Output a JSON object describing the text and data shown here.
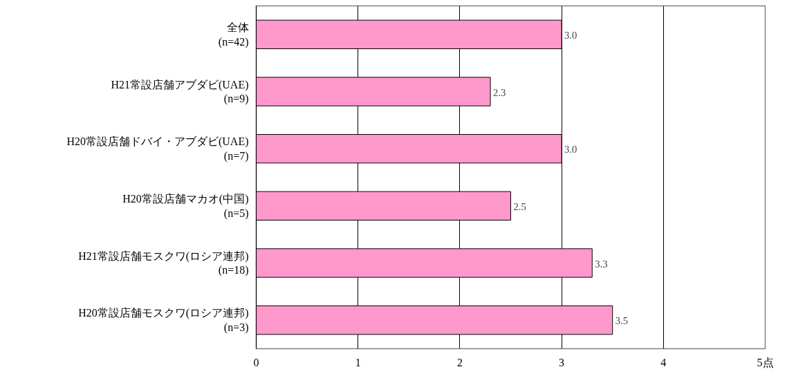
{
  "chart_data": {
    "type": "bar",
    "orientation": "horizontal",
    "categories": [
      "全体\n(n=42)",
      "H21常設店舗アブダビ(UAE)\n(n=9)",
      "H20常設店舗ドバイ・アブダビ(UAE)\n(n=7)",
      "H20常設店舗マカオ(中国)\n(n=5)",
      "H21常設店舗モスクワ(ロシア連邦)\n(n=18)",
      "H20常設店舗モスクワ(ロシア連邦)\n(n=3)"
    ],
    "values": [
      3.0,
      2.3,
      3.0,
      2.5,
      3.3,
      3.5
    ],
    "value_labels": [
      "3.0",
      "2.3",
      "3.0",
      "2.5",
      "3.3",
      "3.5"
    ],
    "color": "#ff99cc",
    "xlim": [
      0,
      5
    ],
    "xticks": [
      0,
      1,
      2,
      3,
      4,
      {
        "value": 5,
        "label": "5点"
      }
    ],
    "grid": "x"
  }
}
